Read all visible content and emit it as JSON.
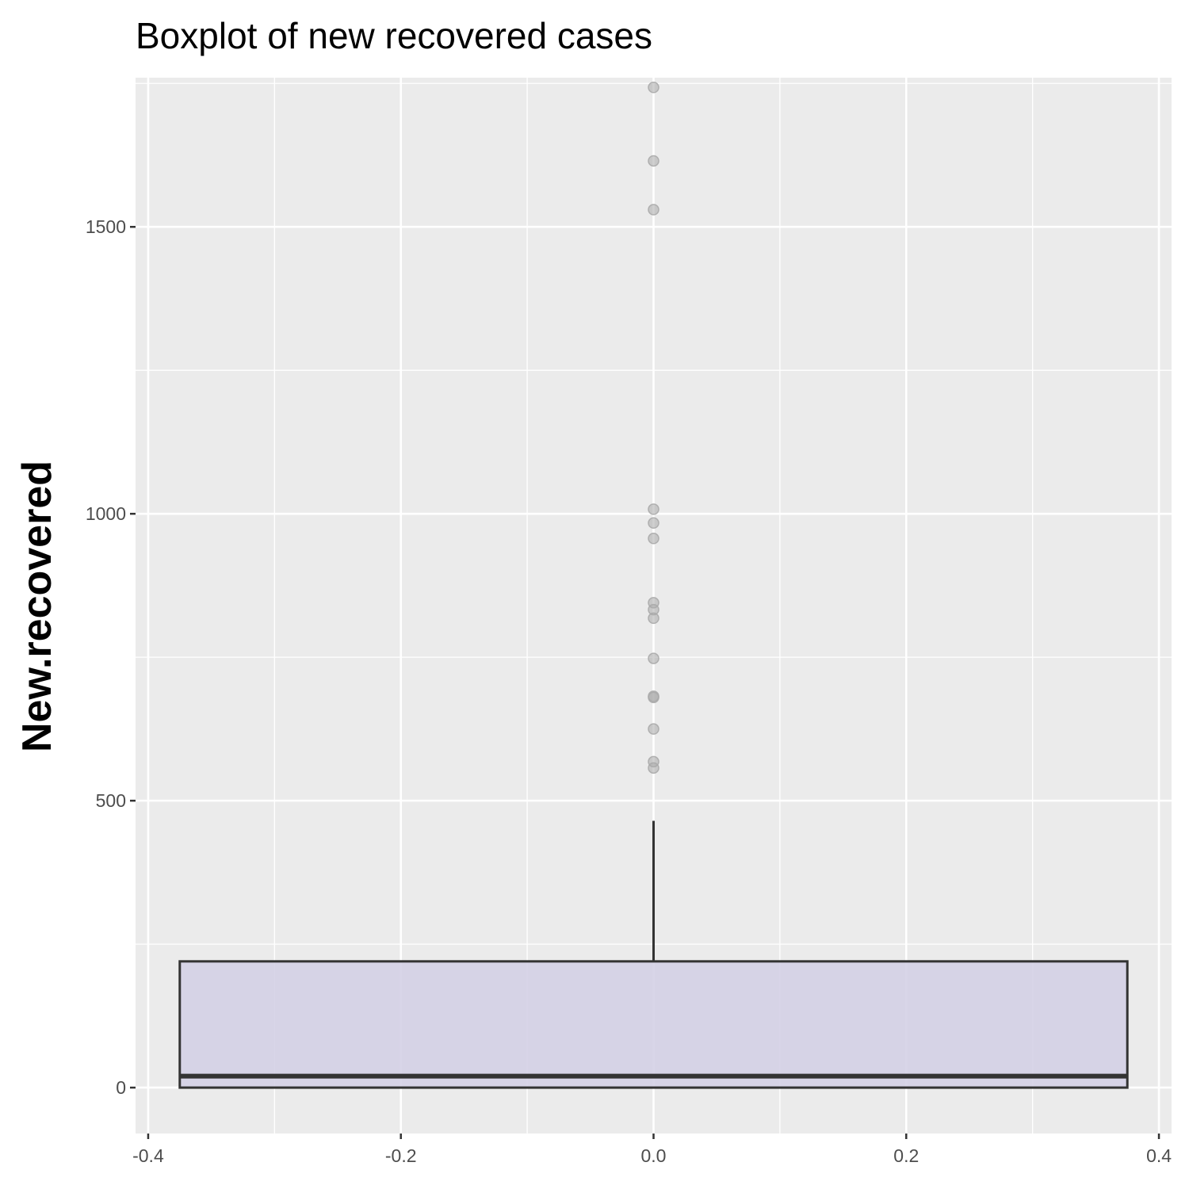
{
  "chart_data": {
    "type": "boxplot",
    "title": "Boxplot of new recovered cases",
    "xlabel": "",
    "ylabel": "New.recovered",
    "xlim": [
      -0.41,
      0.41
    ],
    "ylim": [
      -80,
      1760
    ],
    "x_ticks": [
      -0.4,
      -0.2,
      0.0,
      0.2,
      0.4
    ],
    "x_tick_labels": [
      "-0.4",
      "-0.2",
      "0.0",
      "0.2",
      "0.4"
    ],
    "y_ticks": [
      0,
      500,
      1000,
      1500
    ],
    "y_tick_labels": [
      "0",
      "500",
      "1000",
      "1500"
    ],
    "grid": true,
    "box": {
      "x_center": 0.0,
      "x_min": -0.375,
      "x_max": 0.375,
      "q1": 0,
      "median": 20,
      "q3": 220,
      "whisker_low": 0,
      "whisker_high": 465
    },
    "outliers": [
      1743,
      1615,
      1530,
      1008,
      984,
      957,
      845,
      833,
      818,
      748,
      682,
      680,
      625,
      568,
      557
    ],
    "colors": {
      "panel_background": "#ebebeb",
      "grid": "#ffffff",
      "box_fill": "#d4d0e6",
      "box_outline": "#333333",
      "outlier": "#aaaaaa"
    }
  }
}
